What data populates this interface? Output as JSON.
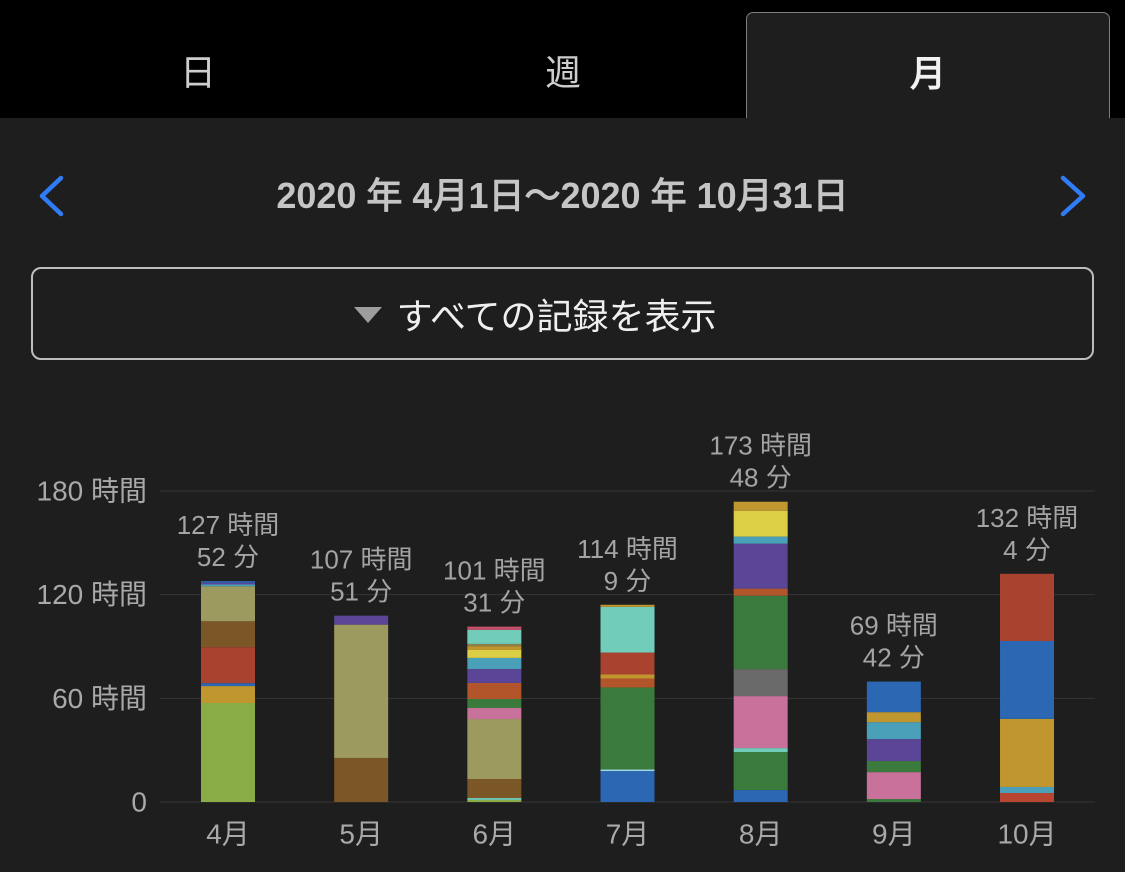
{
  "tabs": {
    "items": [
      {
        "label": "日",
        "selected": false
      },
      {
        "label": "週",
        "selected": false
      },
      {
        "label": "月",
        "selected": true
      }
    ]
  },
  "period_nav": {
    "range_label": "2020 年 4月1日〜2020 年 10月31日",
    "prev_icon": "chevron-left-icon",
    "next_icon": "chevron-right-icon"
  },
  "filter": {
    "label": "すべての記録を表示",
    "icon": "triangle-down-icon"
  },
  "colors": {
    "background": "#1e1e1e",
    "tab_bar": "#000000",
    "accent": "#2f7cf6"
  },
  "chart_data": {
    "type": "bar",
    "stacked": true,
    "grid": true,
    "legend": false,
    "categories": [
      "4月",
      "5月",
      "6月",
      "7月",
      "8月",
      "9月",
      "10月"
    ],
    "ylim": [
      0,
      180
    ],
    "y_ticks": [
      {
        "value": 0,
        "label": "0"
      },
      {
        "value": 60,
        "label": "60 時間"
      },
      {
        "value": 120,
        "label": "120 時間"
      },
      {
        "value": 180,
        "label": "180 時間"
      }
    ],
    "bars": [
      {
        "total_label": [
          "127 時間",
          "52 分"
        ],
        "segments": [
          {
            "value": 57.3,
            "color": "#8aac46"
          },
          {
            "value": 9.8,
            "color": "#c0962f"
          },
          {
            "value": 1.7,
            "color": "#2b67b3"
          },
          {
            "value": 20.8,
            "color": "#a9432f"
          },
          {
            "value": 15.0,
            "color": "#7b5627"
          },
          {
            "value": 20.3,
            "color": "#9d9a5f"
          },
          {
            "value": 1.0,
            "color": "#4aa0b8"
          },
          {
            "value": 1.0,
            "color": "#5b4596"
          },
          {
            "value": 0.97,
            "color": "#2b67b3"
          }
        ]
      },
      {
        "total_label": [
          "107 時間",
          "51 分"
        ],
        "segments": [
          {
            "value": 25.5,
            "color": "#7b5627"
          },
          {
            "value": 77.15,
            "color": "#9d9a5f"
          },
          {
            "value": 5.2,
            "color": "#5b4596"
          }
        ]
      },
      {
        "total_label": [
          "101 時間",
          "31 分"
        ],
        "segments": [
          {
            "value": 1.2,
            "color": "#8aac46"
          },
          {
            "value": 1.1,
            "color": "#71cdb9"
          },
          {
            "value": 11.0,
            "color": "#7b5627"
          },
          {
            "value": 34.7,
            "color": "#9d9a5f"
          },
          {
            "value": 6.4,
            "color": "#c8719b"
          },
          {
            "value": 5.2,
            "color": "#3a7b3d"
          },
          {
            "value": 9.3,
            "color": "#b2552b"
          },
          {
            "value": 8.1,
            "color": "#5b4596"
          },
          {
            "value": 6.4,
            "color": "#4aa0b8"
          },
          {
            "value": 4.6,
            "color": "#dccf46"
          },
          {
            "value": 2.2,
            "color": "#c0962f"
          },
          {
            "value": 1.3,
            "color": "#8a8048"
          },
          {
            "value": 8.1,
            "color": "#71cdb9"
          },
          {
            "value": 1.92,
            "color": "#c2506a"
          }
        ]
      },
      {
        "total_label": [
          "114 時間",
          "9 分"
        ],
        "segments": [
          {
            "value": 17.9,
            "color": "#2b67b3"
          },
          {
            "value": 0.9,
            "color": "#9fd6e0"
          },
          {
            "value": 47.5,
            "color": "#3a7b3d"
          },
          {
            "value": 5.2,
            "color": "#b2552b"
          },
          {
            "value": 2.3,
            "color": "#c0962f"
          },
          {
            "value": 12.7,
            "color": "#a9432f"
          },
          {
            "value": 26.45,
            "color": "#71cdb9"
          },
          {
            "value": 1.2,
            "color": "#c0962f"
          }
        ]
      },
      {
        "total_label": [
          "173 時間",
          "48 分"
        ],
        "segments": [
          {
            "value": 6.9,
            "color": "#2b67b3"
          },
          {
            "value": 22.0,
            "color": "#3a7b3d"
          },
          {
            "value": 2.3,
            "color": "#71cdb9"
          },
          {
            "value": 30.1,
            "color": "#c8719b"
          },
          {
            "value": 15.6,
            "color": "#6a6a6a"
          },
          {
            "value": 42.5,
            "color": "#3a7b3d"
          },
          {
            "value": 4.1,
            "color": "#b2552b"
          },
          {
            "value": 26.0,
            "color": "#5b4596"
          },
          {
            "value": 4.1,
            "color": "#4aa0b8"
          },
          {
            "value": 15.0,
            "color": "#dccf46"
          },
          {
            "value": 5.2,
            "color": "#c0962f"
          }
        ]
      },
      {
        "total_label": [
          "69 時間",
          "42 分"
        ],
        "segments": [
          {
            "value": 1.7,
            "color": "#3a7b3d"
          },
          {
            "value": 15.6,
            "color": "#c8719b"
          },
          {
            "value": 6.4,
            "color": "#3a7b3d"
          },
          {
            "value": 12.7,
            "color": "#5b4596"
          },
          {
            "value": 9.8,
            "color": "#4aa0b8"
          },
          {
            "value": 5.8,
            "color": "#c0962f"
          },
          {
            "value": 17.7,
            "color": "#2b67b3"
          }
        ]
      },
      {
        "total_label": [
          "132 時間",
          "4 分"
        ],
        "segments": [
          {
            "value": 5.2,
            "color": "#b8452f"
          },
          {
            "value": 3.5,
            "color": "#4aa0b8"
          },
          {
            "value": 39.4,
            "color": "#c0962f"
          },
          {
            "value": 45.1,
            "color": "#2b67b3"
          },
          {
            "value": 38.87,
            "color": "#a9432f"
          }
        ]
      }
    ]
  }
}
